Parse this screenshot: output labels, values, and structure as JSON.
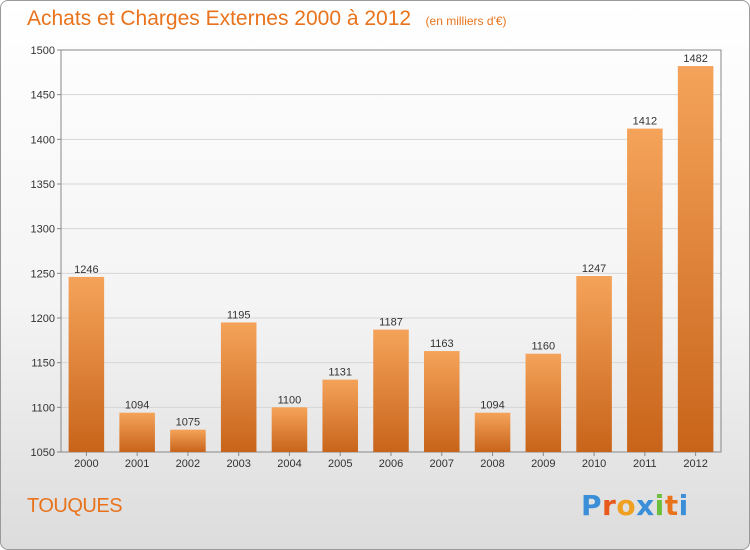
{
  "header": {
    "title": "Achats et Charges Externes 2000 à 2012",
    "unit": "(en milliers d'€)"
  },
  "footer": {
    "town": "TOUQUES",
    "logo_letters": [
      "P",
      "r",
      "o",
      "x",
      "i",
      "t",
      "i"
    ],
    "logo_colors": [
      "#3a8fd8",
      "#e85a1c",
      "#f0a020",
      "#3a8fd8",
      "#6cbf3a",
      "#e8731c",
      "#3a8fd8"
    ]
  },
  "colors": {
    "bar_top": "#f5a35a",
    "bar_bottom": "#c8641a",
    "title": "#e8731c"
  },
  "chart_data": {
    "type": "bar",
    "categories": [
      "2000",
      "2001",
      "2002",
      "2003",
      "2004",
      "2005",
      "2006",
      "2007",
      "2008",
      "2009",
      "2010",
      "2011",
      "2012"
    ],
    "values": [
      1246,
      1094,
      1075,
      1195,
      1100,
      1131,
      1187,
      1163,
      1094,
      1160,
      1247,
      1412,
      1482
    ],
    "ylim": [
      1050,
      1500
    ],
    "yticks": [
      1050,
      1100,
      1150,
      1200,
      1250,
      1300,
      1350,
      1400,
      1450,
      1500
    ],
    "grid": true,
    "legend": "none"
  }
}
